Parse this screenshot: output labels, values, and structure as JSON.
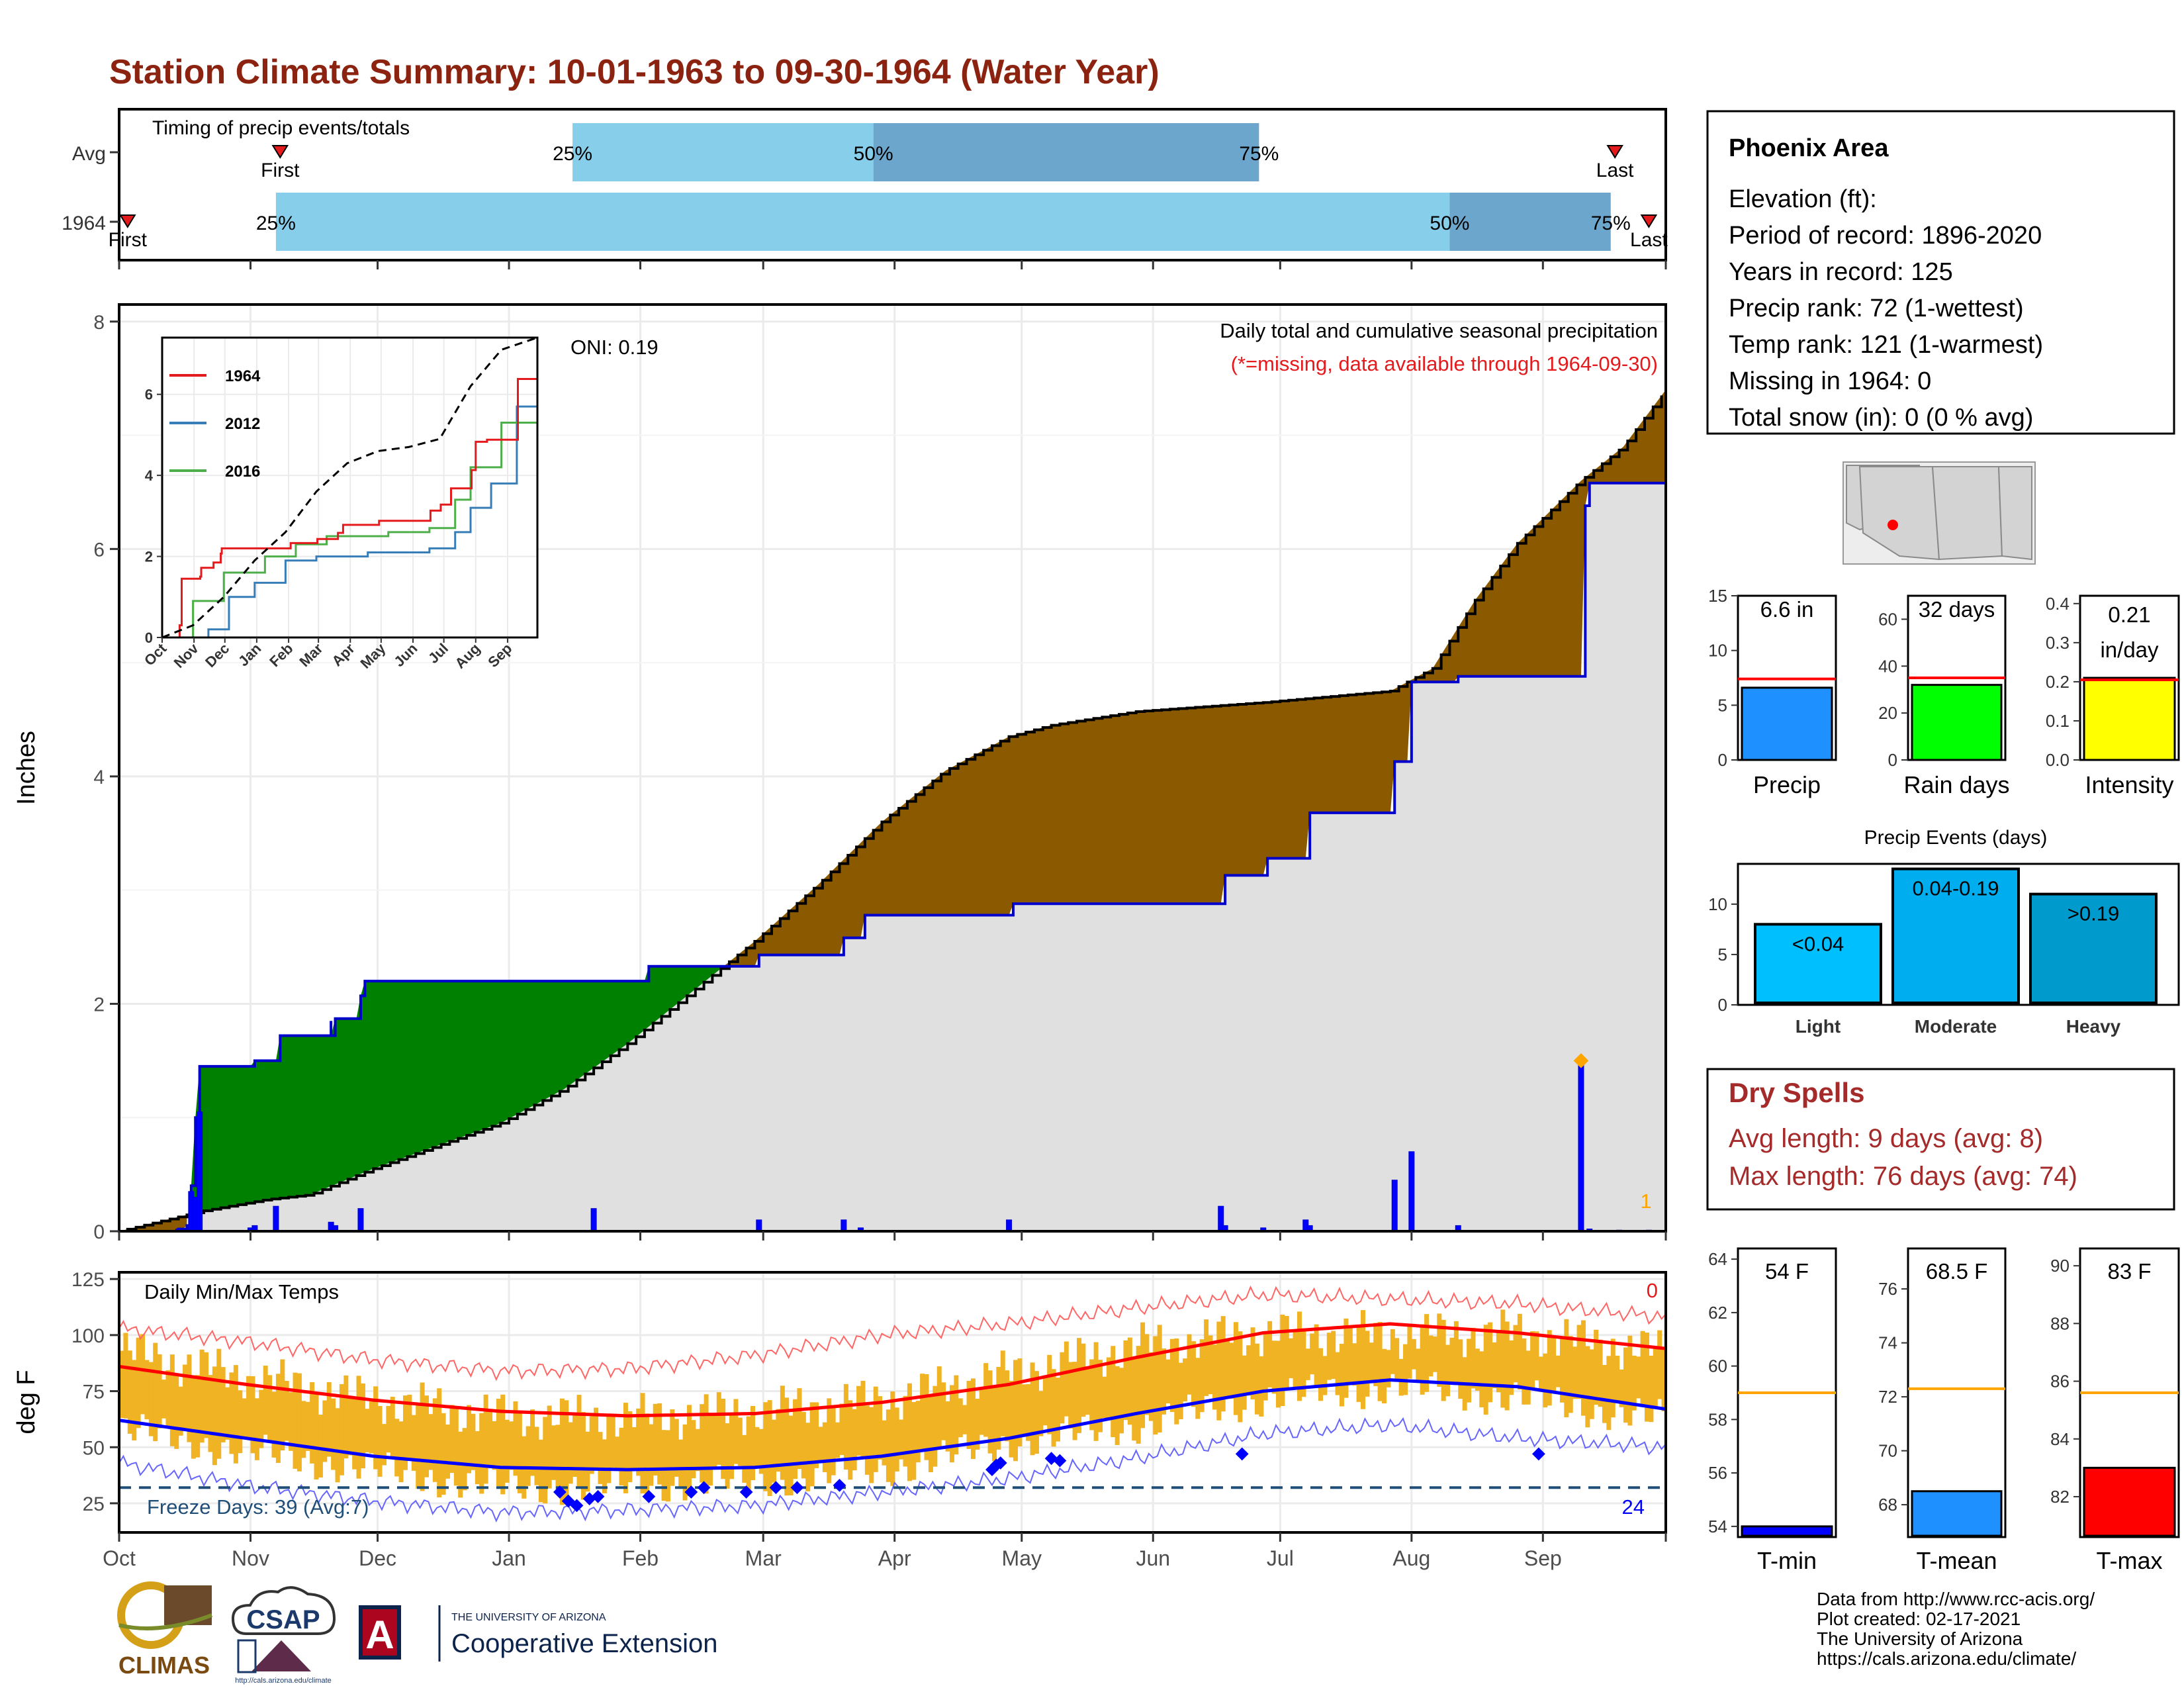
{
  "title": "Station Climate Summary: 10-01-1963 to 09-30-1964 (Water Year)",
  "colors": {
    "title": "#8B2310",
    "precip_light": "#87CEEB",
    "precip_dark": "#6CA6CD",
    "deficit": "#8B5A00",
    "surplus": "#008000",
    "observed_fill": "#E0E0E0",
    "observed_line": "#0000CD",
    "temp_bar": "#F0B323",
    "avg_max": "#FF0000",
    "avg_min": "#0000FF",
    "dry_spells": "#A52A2A"
  },
  "timing": {
    "label": "Timing of precip events/totals",
    "rows": [
      {
        "name": "Avg",
        "first_label": "First",
        "last_label": "Last",
        "first_day": 38,
        "last_day": 353,
        "p25_day": 107,
        "p50_day": 178,
        "p75_day": 269,
        "p25_label": "25%",
        "p50_label": "50%",
        "p75_label": "75%"
      },
      {
        "name": "1964",
        "first_label": "First",
        "last_label": "Last",
        "first_day": 2,
        "last_day": 361,
        "p25_day": 37,
        "p50_day": 314,
        "p75_day": 352,
        "p25_label": "25%",
        "p50_label": "50%",
        "p75_label": "75%"
      }
    ]
  },
  "precip": {
    "ylabel": "Inches",
    "yticks": [
      0,
      2,
      4,
      6,
      8
    ],
    "ymax": 8.15,
    "title1": "Daily total and cumulative seasonal precipitation",
    "title2": "(*=missing, data available through 1964-09-30)",
    "oni": "ONI: 0.19",
    "missing_count": "1",
    "avg_cum": [
      [
        0,
        0
      ],
      [
        20,
        0.18
      ],
      [
        35,
        0.28
      ],
      [
        45,
        0.32
      ],
      [
        60,
        0.55
      ],
      [
        75,
        0.75
      ],
      [
        90,
        0.95
      ],
      [
        105,
        1.25
      ],
      [
        120,
        1.65
      ],
      [
        135,
        2.1
      ],
      [
        150,
        2.55
      ],
      [
        165,
        3.05
      ],
      [
        180,
        3.6
      ],
      [
        195,
        4.05
      ],
      [
        210,
        4.35
      ],
      [
        220,
        4.45
      ],
      [
        240,
        4.57
      ],
      [
        270,
        4.65
      ],
      [
        300,
        4.75
      ],
      [
        310,
        4.95
      ],
      [
        320,
        5.55
      ],
      [
        330,
        6.05
      ],
      [
        345,
        6.6
      ],
      [
        355,
        6.9
      ],
      [
        365,
        7.4
      ]
    ],
    "obs_cum": [
      [
        0,
        0
      ],
      [
        14,
        0.02
      ],
      [
        16,
        0.05
      ],
      [
        17,
        0.4
      ],
      [
        18,
        1.0
      ],
      [
        19,
        1.45
      ],
      [
        31,
        1.45
      ],
      [
        32,
        1.5
      ],
      [
        37,
        1.5
      ],
      [
        38,
        1.72
      ],
      [
        49,
        1.72
      ],
      [
        50,
        1.85
      ],
      [
        50,
        1.72
      ],
      [
        51,
        1.87
      ],
      [
        56,
        1.87
      ],
      [
        57,
        2.07
      ],
      [
        58,
        2.2
      ],
      [
        112,
        2.2
      ],
      [
        113,
        2.2
      ],
      [
        124,
        2.2
      ],
      [
        125,
        2.33
      ],
      [
        150,
        2.33
      ],
      [
        151,
        2.43
      ],
      [
        170,
        2.43
      ],
      [
        171,
        2.58
      ],
      [
        175,
        2.58
      ],
      [
        176,
        2.78
      ],
      [
        210,
        2.78
      ],
      [
        211,
        2.88
      ],
      [
        260,
        2.88
      ],
      [
        261,
        3.13
      ],
      [
        270,
        3.13
      ],
      [
        271,
        3.28
      ],
      [
        280,
        3.28
      ],
      [
        281,
        3.68
      ],
      [
        300,
        3.68
      ],
      [
        301,
        4.13
      ],
      [
        304,
        4.13
      ],
      [
        305,
        4.83
      ],
      [
        315,
        4.83
      ],
      [
        316,
        4.88
      ],
      [
        345,
        4.88
      ],
      [
        346,
        6.38
      ],
      [
        347,
        6.58
      ],
      [
        365,
        6.6
      ]
    ],
    "daily": [
      [
        14,
        0.02
      ],
      [
        17,
        0.35
      ],
      [
        18,
        0.3
      ],
      [
        19,
        1.05
      ],
      [
        31,
        0.03
      ],
      [
        32,
        0.05
      ],
      [
        37,
        0.22
      ],
      [
        50,
        0.08
      ],
      [
        51,
        0.05
      ],
      [
        57,
        0.2
      ],
      [
        112,
        0.2
      ],
      [
        151,
        0.1
      ],
      [
        171,
        0.1
      ],
      [
        175,
        0.03
      ],
      [
        210,
        0.1
      ],
      [
        260,
        0.22
      ],
      [
        261,
        0.05
      ],
      [
        270,
        0.03
      ],
      [
        280,
        0.1
      ],
      [
        281,
        0.05
      ],
      [
        301,
        0.45
      ],
      [
        305,
        0.7
      ],
      [
        316,
        0.05
      ],
      [
        345,
        1.5
      ],
      [
        347,
        0.02
      ],
      [
        354,
        0.01
      ],
      [
        361,
        0.01
      ]
    ]
  },
  "inset": {
    "yticks": [
      0,
      2,
      4,
      6
    ],
    "months": [
      "Oct",
      "Nov",
      "Dec",
      "Jan",
      "Feb",
      "Mar",
      "Apr",
      "May",
      "Jun",
      "Jul",
      "Aug",
      "Sep"
    ],
    "legend": [
      {
        "name": "1964",
        "color": "#E41A1C"
      },
      {
        "name": "2012",
        "color": "#377EB8"
      },
      {
        "name": "2016",
        "color": "#4DAF4A"
      }
    ],
    "avg": [
      [
        0,
        0
      ],
      [
        30,
        0.3
      ],
      [
        60,
        1.0
      ],
      [
        90,
        1.9
      ],
      [
        120,
        2.6
      ],
      [
        150,
        3.6
      ],
      [
        180,
        4.3
      ],
      [
        210,
        4.6
      ],
      [
        240,
        4.7
      ],
      [
        270,
        4.9
      ],
      [
        300,
        6.2
      ],
      [
        330,
        7.1
      ],
      [
        365,
        7.4
      ]
    ],
    "s1964": [
      [
        0,
        0
      ],
      [
        17,
        0.3
      ],
      [
        19,
        1.45
      ],
      [
        37,
        1.5
      ],
      [
        38,
        1.72
      ],
      [
        50,
        1.85
      ],
      [
        57,
        2.07
      ],
      [
        58,
        2.2
      ],
      [
        112,
        2.2
      ],
      [
        125,
        2.33
      ],
      [
        151,
        2.43
      ],
      [
        171,
        2.58
      ],
      [
        176,
        2.78
      ],
      [
        211,
        2.88
      ],
      [
        261,
        3.13
      ],
      [
        271,
        3.28
      ],
      [
        281,
        3.68
      ],
      [
        301,
        4.13
      ],
      [
        305,
        4.83
      ],
      [
        316,
        4.88
      ],
      [
        346,
        6.38
      ],
      [
        365,
        6.6
      ]
    ],
    "s2012": [
      [
        0,
        0
      ],
      [
        45,
        0.2
      ],
      [
        65,
        1.0
      ],
      [
        90,
        1.35
      ],
      [
        120,
        1.9
      ],
      [
        150,
        2.0
      ],
      [
        200,
        2.1
      ],
      [
        260,
        2.2
      ],
      [
        285,
        2.6
      ],
      [
        300,
        3.2
      ],
      [
        320,
        3.8
      ],
      [
        345,
        5.7
      ],
      [
        365,
        5.8
      ]
    ],
    "s2016": [
      [
        0,
        0
      ],
      [
        30,
        0.9
      ],
      [
        60,
        1.6
      ],
      [
        100,
        2.0
      ],
      [
        130,
        2.3
      ],
      [
        160,
        2.5
      ],
      [
        220,
        2.6
      ],
      [
        260,
        2.7
      ],
      [
        285,
        3.4
      ],
      [
        300,
        4.2
      ],
      [
        330,
        5.3
      ],
      [
        365,
        5.8
      ]
    ]
  },
  "temp": {
    "ylabel": "deg F",
    "title": "Daily Min/Max Temps",
    "yticks": [
      25,
      50,
      75,
      100,
      125
    ],
    "ymin": 12,
    "ymax": 128,
    "freeze_label": "Freeze Days: 39 (Avg:7)",
    "freeze_line": 32,
    "count_hot": "0",
    "count_cold": "24",
    "avg_max": [
      [
        0,
        86
      ],
      [
        30,
        78
      ],
      [
        60,
        71
      ],
      [
        90,
        66
      ],
      [
        120,
        64
      ],
      [
        150,
        65
      ],
      [
        180,
        70
      ],
      [
        210,
        78
      ],
      [
        240,
        90
      ],
      [
        270,
        101
      ],
      [
        300,
        105
      ],
      [
        330,
        101
      ],
      [
        365,
        94
      ]
    ],
    "avg_min": [
      [
        0,
        62
      ],
      [
        30,
        54
      ],
      [
        60,
        46
      ],
      [
        90,
        41
      ],
      [
        120,
        40
      ],
      [
        150,
        41
      ],
      [
        180,
        46
      ],
      [
        210,
        54
      ],
      [
        240,
        65
      ],
      [
        270,
        75
      ],
      [
        300,
        80
      ],
      [
        330,
        77
      ],
      [
        365,
        67
      ]
    ],
    "rec_max": [
      [
        0,
        103
      ],
      [
        30,
        97
      ],
      [
        60,
        89
      ],
      [
        90,
        84
      ],
      [
        120,
        85
      ],
      [
        150,
        91
      ],
      [
        180,
        100
      ],
      [
        210,
        105
      ],
      [
        240,
        112
      ],
      [
        270,
        118
      ],
      [
        300,
        116
      ],
      [
        330,
        114
      ],
      [
        365,
        108
      ]
    ],
    "rec_min": [
      [
        0,
        43
      ],
      [
        30,
        33
      ],
      [
        60,
        26
      ],
      [
        90,
        21
      ],
      [
        120,
        22
      ],
      [
        150,
        24
      ],
      [
        180,
        30
      ],
      [
        210,
        36
      ],
      [
        240,
        45
      ],
      [
        270,
        56
      ],
      [
        300,
        60
      ],
      [
        330,
        54
      ],
      [
        365,
        50
      ]
    ],
    "obs_max": [
      [
        0,
        93
      ],
      [
        30,
        81
      ],
      [
        60,
        71
      ],
      [
        90,
        64
      ],
      [
        120,
        63
      ],
      [
        150,
        66
      ],
      [
        180,
        71
      ],
      [
        210,
        83
      ],
      [
        240,
        95
      ],
      [
        270,
        101
      ],
      [
        300,
        100
      ],
      [
        330,
        101
      ],
      [
        365,
        92
      ]
    ],
    "obs_min": [
      [
        0,
        58
      ],
      [
        30,
        48
      ],
      [
        60,
        40
      ],
      [
        90,
        32
      ],
      [
        120,
        33
      ],
      [
        150,
        35
      ],
      [
        180,
        40
      ],
      [
        210,
        52
      ],
      [
        240,
        60
      ],
      [
        270,
        72
      ],
      [
        300,
        77
      ],
      [
        330,
        72
      ],
      [
        365,
        62
      ]
    ],
    "freeze_points": [
      [
        104,
        30
      ],
      [
        106,
        26
      ],
      [
        108,
        24
      ],
      [
        111,
        27
      ],
      [
        113,
        28
      ],
      [
        125,
        28
      ],
      [
        135,
        30
      ],
      [
        138,
        32
      ],
      [
        148,
        30
      ],
      [
        155,
        32
      ],
      [
        160,
        32
      ],
      [
        170,
        33
      ],
      [
        206,
        40
      ],
      [
        207,
        42
      ],
      [
        208,
        43
      ],
      [
        220,
        45
      ],
      [
        222,
        44
      ],
      [
        265,
        47
      ],
      [
        335,
        47
      ]
    ]
  },
  "xaxis_months": [
    "Oct",
    "Nov",
    "Dec",
    "Jan",
    "Feb",
    "Mar",
    "Apr",
    "May",
    "Jun",
    "Jul",
    "Aug",
    "Sep"
  ],
  "month_days": [
    0,
    31,
    61,
    92,
    123,
    152,
    183,
    213,
    244,
    274,
    305,
    336
  ],
  "info": {
    "name": "Phoenix Area",
    "lines": [
      "Elevation (ft):",
      "Period of record: 1896-2020",
      "Years in record: 125",
      "Precip rank: 72 (1-wettest)",
      "Temp rank: 121 (1-warmest)",
      "Missing in 1964: 0",
      "Total snow (in): 0 (0 % avg)"
    ]
  },
  "mini_bars": [
    {
      "label": "Precip",
      "value_text": "6.6 in",
      "value": 6.6,
      "avg": 7.4,
      "ymin": 0,
      "ymax": 15,
      "yticks": [
        0,
        5,
        10,
        15
      ],
      "color": "#1E90FF"
    },
    {
      "label": "Rain days",
      "value_text": "32 days",
      "value": 32,
      "avg": 35,
      "ymin": 0,
      "ymax": 70,
      "yticks": [
        0,
        20,
        40,
        60
      ],
      "color": "#00FF00"
    },
    {
      "label": "Intensity",
      "value_text": "0.21 in/day",
      "value_text_line1": "0.21",
      "value_text_line2": "in/day",
      "value": 0.21,
      "avg": 0.205,
      "ymin": 0,
      "ymax": 0.42,
      "yticks": [
        0.0,
        0.1,
        0.2,
        0.3,
        0.4
      ],
      "ytick_labels": [
        "0.0",
        "0.1",
        "0.2",
        "0.3",
        "0.4"
      ],
      "color": "#FFFF00"
    }
  ],
  "events": {
    "title": "Precip Events (days)",
    "yticks": [
      0,
      5,
      10
    ],
    "ymax": 14,
    "bars": [
      {
        "label": "Light",
        "range": "<0.04",
        "value": 8,
        "color": "#00BFFF"
      },
      {
        "label": "Moderate",
        "range": "0.04-0.19",
        "value": 13.5,
        "color": "#00AEEF"
      },
      {
        "label": "Heavy",
        "range": ">0.19",
        "value": 11,
        "color": "#009ACD"
      }
    ]
  },
  "dry_spells": {
    "title": "Dry Spells",
    "line1": "Avg length: 9 days (avg: 8)",
    "line2": "Max length: 76 days (avg: 74)"
  },
  "temp_bars": [
    {
      "label": "T-min",
      "value_text": "54 F",
      "value": 54,
      "avg": 59,
      "ymin": 53.6,
      "ymax": 64.4,
      "yticks": [
        54,
        56,
        58,
        60,
        62,
        64
      ],
      "color": "#0000FF"
    },
    {
      "label": "T-mean",
      "value_text": "68.5 F",
      "value": 68.5,
      "avg": 72.3,
      "ymin": 66.8,
      "ymax": 77.5,
      "yticks": [
        68,
        70,
        72,
        74,
        76
      ],
      "color": "#1E90FF"
    },
    {
      "label": "T-max",
      "value_text": "83 F",
      "value": 83,
      "avg": 85.6,
      "ymin": 80.6,
      "ymax": 90.6,
      "yticks": [
        82,
        84,
        86,
        88,
        90
      ],
      "color": "#FF0000"
    }
  ],
  "footer": {
    "lines": [
      "Data from http://www.rcc-acis.org/",
      "Plot created: 02-17-2021",
      "The University of Arizona",
      "https://cals.arizona.edu/climate/"
    ],
    "logo1": "CLIMAS",
    "logo2": "CSAP",
    "logo2_url": "http://cals.arizona.edu/climate",
    "logo3_small": "THE UNIVERSITY OF ARIZONA",
    "logo3_big": "Cooperative Extension",
    "logo3_letter": "A"
  }
}
